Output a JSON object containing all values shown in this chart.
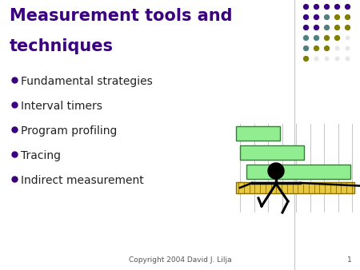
{
  "title_line1": "Measurement tools and",
  "title_line2": "techniques",
  "title_color": "#3B0080",
  "title_fontsize": 15,
  "bullet_items": [
    "Fundamental strategies",
    "Interval timers",
    "Program profiling",
    "Tracing",
    "Indirect measurement"
  ],
  "bullet_color": "#222222",
  "bullet_fontsize": 10,
  "bullet_marker_color": "#3B0080",
  "background_color": "#ffffff",
  "footer_text": "Copyright 2004 David J. Lilja",
  "footer_page": "1",
  "footer_fontsize": 6.5,
  "dot_rows": [
    [
      "#3B0080",
      "#3B0080",
      "#3B0080",
      "#3B0080",
      "#3B0080"
    ],
    [
      "#3B0080",
      "#3B0080",
      "#508080",
      "#808000",
      "#808000"
    ],
    [
      "#3B0080",
      "#3B0080",
      "#508080",
      "#808000",
      "#808000"
    ],
    [
      "#508080",
      "#508080",
      "#808000",
      "#808000",
      "#C8C8C8"
    ],
    [
      "#508080",
      "#808000",
      "#808000",
      "#C8C8C8",
      "#C8C8C8"
    ],
    [
      "#808000",
      "#C8C8C8",
      "#C8C8C8",
      "#C8C8C8",
      "#C8C8C8"
    ]
  ],
  "separator_line_color": "#B0B0B0",
  "gantt_bar_color": "#90EE90",
  "gantt_bar_edge": "#3a7a3a",
  "ruler_color": "#E8C840",
  "ruler_edge": "#8B7000"
}
